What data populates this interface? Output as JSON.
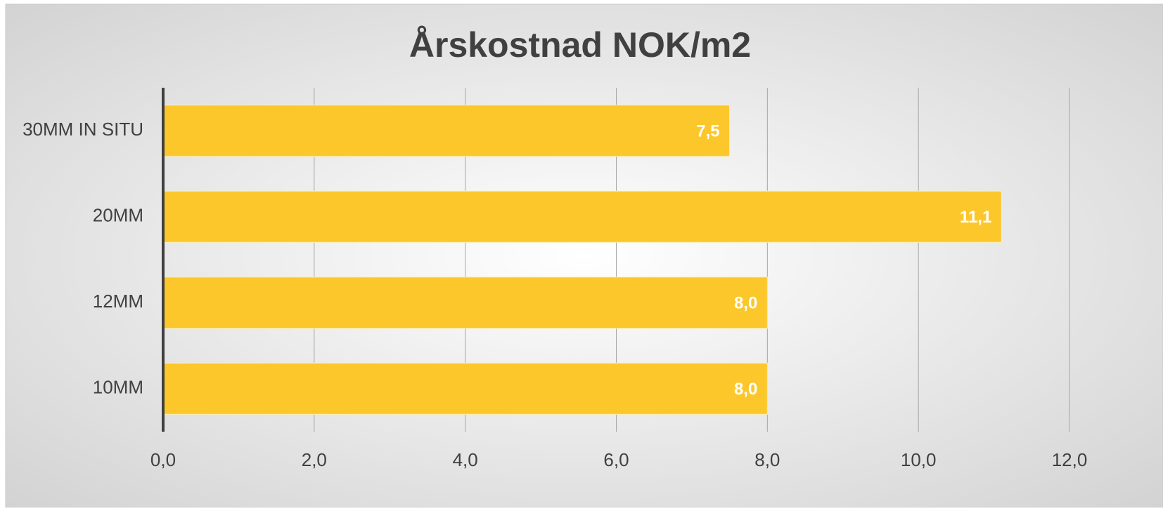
{
  "chart_data": {
    "type": "bar",
    "orientation": "horizontal",
    "title": "Årskostnad NOK/m2",
    "categories": [
      "30MM IN SITU",
      "20MM",
      "12MM",
      "10MM"
    ],
    "values": [
      7.5,
      11.1,
      8.0,
      8.0
    ],
    "value_labels": [
      "7,5",
      "11,1",
      "8,0",
      "8,0"
    ],
    "color": "#fcc72a",
    "xlim": [
      0,
      12
    ],
    "xticks": [
      {
        "value": 0,
        "label": "0,0"
      },
      {
        "value": 2,
        "label": "2,0"
      },
      {
        "value": 4,
        "label": "4,0"
      },
      {
        "value": 6,
        "label": "6,0"
      },
      {
        "value": 8,
        "label": "8,0"
      },
      {
        "value": 10,
        "label": "10,0"
      },
      {
        "value": 12,
        "label": "12,0"
      }
    ],
    "grid": true
  }
}
